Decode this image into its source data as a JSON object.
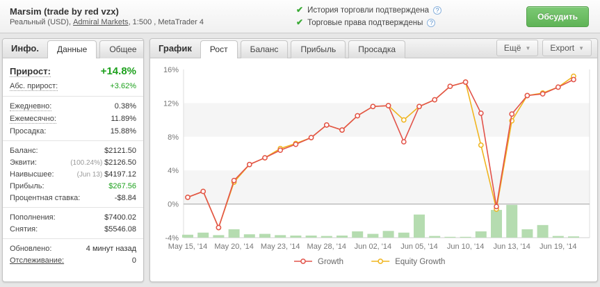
{
  "header": {
    "title": "Marsim (trade by red vzx)",
    "subtitle_prefix": "Реальный (USD), ",
    "broker_link": "Admiral Markets",
    "subtitle_suffix": ", 1:500 , MetaTrader 4",
    "verifications": [
      {
        "label": "История торговли подтверждена"
      },
      {
        "label": "Торговые права подтверждены"
      }
    ],
    "discuss_button": "Обсудить"
  },
  "icons": {
    "check": "✔",
    "help": "?",
    "caret": "▼"
  },
  "sidebar": {
    "info_label": "Инфо.",
    "data_tab": "Данные",
    "general_tab": "Общее",
    "groups": [
      [
        {
          "label": "Прирост:",
          "value": "+14.8%",
          "green": true,
          "big": true,
          "dotted": true
        },
        {
          "label": "Абс. прирост:",
          "value": "+3.62%",
          "green": true,
          "dotted": true
        }
      ],
      [
        {
          "label": "Ежедневно:",
          "value": "0.38%",
          "dotted": true
        },
        {
          "label": "Ежемесячно:",
          "value": "11.89%",
          "dotted": true
        },
        {
          "label": "Просадка:",
          "value": "15.88%"
        }
      ],
      [
        {
          "label": "Баланс:",
          "value": "$2121.50"
        },
        {
          "label": "Эквити:",
          "note": "(100.24%)",
          "value": "$2126.50"
        },
        {
          "label": "Наивысшее:",
          "note": "(Jun 13)",
          "value": "$4197.12"
        },
        {
          "label": "Прибыль:",
          "value": "$267.56",
          "green": true
        },
        {
          "label": "Процентная ставка:",
          "value": "-$8.84"
        }
      ],
      [
        {
          "label": "Пополнения:",
          "value": "$7400.02"
        },
        {
          "label": "Снятия:",
          "value": "$5546.08"
        }
      ],
      [
        {
          "label": "Обновлено:",
          "value": "4 минут назад"
        },
        {
          "label": "Отслеживание:",
          "value": "0",
          "link": true
        }
      ]
    ]
  },
  "chartPanel": {
    "label": "График",
    "tabs": [
      {
        "id": "growth",
        "label": "Рост",
        "active": true
      },
      {
        "id": "balance",
        "label": "Баланс",
        "active": false
      },
      {
        "id": "profit",
        "label": "Прибыль",
        "active": false
      },
      {
        "id": "drawdown",
        "label": "Просадка",
        "active": false
      }
    ],
    "more_button": "Ещё",
    "export_button": "Export"
  },
  "chart_data": {
    "type": "line",
    "ylim": [
      -4,
      16
    ],
    "y_ticks": [
      16,
      12,
      8,
      4,
      0,
      -4
    ],
    "y_tick_suffix": "%",
    "shaded_bands": [
      [
        0,
        4
      ],
      [
        8,
        12
      ]
    ],
    "x_tick_labels": [
      "May 15, '14",
      "May 20, '14",
      "May 23, '14",
      "May 28, '14",
      "Jun 02, '14",
      "Jun 05, '14",
      "Jun 10, '14",
      "Jun 13, '14",
      "Jun 19, '14"
    ],
    "x_tick_indices": [
      0,
      3,
      6,
      9,
      12,
      15,
      18,
      21,
      24
    ],
    "series": [
      {
        "name": "Growth",
        "color": "#e2534a",
        "values": [
          0.8,
          1.5,
          -2.8,
          2.8,
          4.7,
          5.5,
          6.4,
          7.1,
          7.9,
          9.4,
          8.8,
          10.5,
          11.6,
          11.7,
          7.4,
          11.6,
          12.4,
          14.0,
          14.5,
          10.8,
          -0.3,
          10.7,
          12.9,
          13.1,
          13.9,
          14.8
        ]
      },
      {
        "name": "Equity Growth",
        "color": "#f0b51f",
        "values": [
          0.8,
          1.5,
          -2.8,
          2.6,
          4.7,
          5.5,
          6.6,
          7.2,
          7.9,
          9.4,
          8.8,
          10.5,
          11.6,
          11.7,
          10.0,
          11.6,
          12.4,
          14.0,
          14.5,
          7.0,
          -0.6,
          9.9,
          12.9,
          13.2,
          13.9,
          15.2
        ]
      }
    ],
    "volume_bars": {
      "color": "#b5dcb0",
      "values": [
        0.35,
        0.6,
        0.3,
        1.0,
        0.4,
        0.45,
        0.3,
        0.25,
        0.25,
        0.2,
        0.25,
        0.75,
        0.45,
        0.8,
        0.6,
        2.75,
        0.2,
        0.1,
        0.1,
        0.75,
        3.3,
        3.9,
        1.0,
        1.5,
        0.2,
        0.15
      ]
    },
    "legend": [
      "Growth",
      "Equity Growth"
    ],
    "legend_position": "bottom"
  }
}
